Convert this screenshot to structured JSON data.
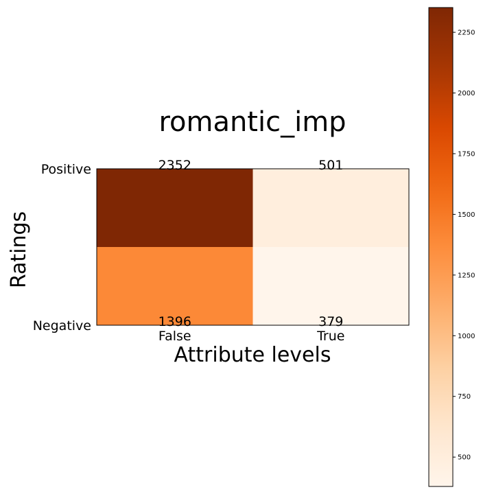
{
  "chart_data": {
    "type": "heatmap",
    "title": "romantic_imp",
    "xlabel": "Attribute levels",
    "ylabel": "Ratings",
    "x_categories": [
      "False",
      "True"
    ],
    "y_categories": [
      "Positive",
      "Negative"
    ],
    "values": [
      [
        2352,
        501
      ],
      [
        1396,
        379
      ]
    ],
    "colormap": "Oranges",
    "colorbar": {
      "min": 379,
      "max": 2352,
      "ticks": [
        500,
        750,
        1000,
        1250,
        1500,
        1750,
        2000,
        2250
      ]
    },
    "grid": false
  }
}
